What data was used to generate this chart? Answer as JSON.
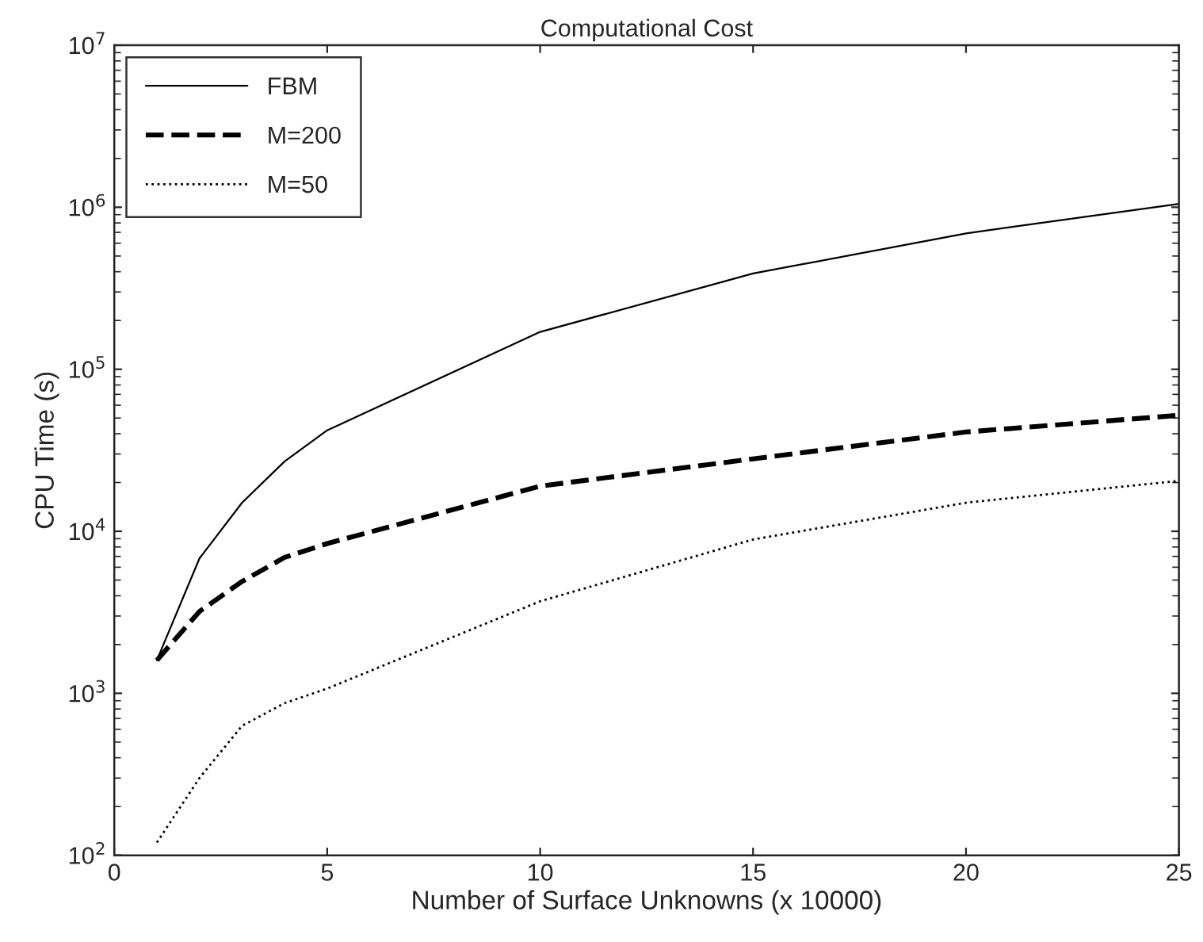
{
  "chart_data": {
    "type": "line",
    "title": "Computational Cost",
    "xlabel": "Number of Surface Unknowns (x 10000)",
    "ylabel": "CPU Time (s)",
    "x": [
      1,
      2,
      3,
      4,
      5,
      10,
      15,
      20,
      25
    ],
    "series": [
      {
        "name": "FBM",
        "color": "#000000",
        "line_style": "solid",
        "values": [
          1600,
          6800,
          15000,
          27000,
          42000,
          170000,
          390000,
          690000,
          1050000
        ]
      },
      {
        "name": "M=200",
        "color": "#000000",
        "line_style": "dashed",
        "values": [
          1600,
          3200,
          4900,
          6900,
          8400,
          19000,
          28000,
          41000,
          52000
        ]
      },
      {
        "name": "M=50",
        "color": "#000000",
        "line_style": "dotted",
        "values": [
          120,
          300,
          630,
          870,
          1070,
          3700,
          8900,
          15000,
          20500
        ]
      }
    ],
    "log": "y",
    "xlim": [
      0,
      25
    ],
    "xticks": [
      0,
      5,
      10,
      15,
      20,
      25
    ],
    "ylim": [
      100,
      10000000
    ],
    "yticks": [
      {
        "value": 100,
        "label": "10$^{2}$"
      },
      {
        "value": 1000,
        "label": "10$^{3}$"
      },
      {
        "value": 10000,
        "label": "10$^{4}$"
      },
      {
        "value": 100000,
        "label": "10$^{5}$"
      },
      {
        "value": 1000000,
        "label": "10$^{6}$"
      },
      {
        "value": 10000000,
        "label": "10$^{7}$"
      }
    ],
    "grid": false,
    "legend": "top left",
    "marker": "none"
  }
}
